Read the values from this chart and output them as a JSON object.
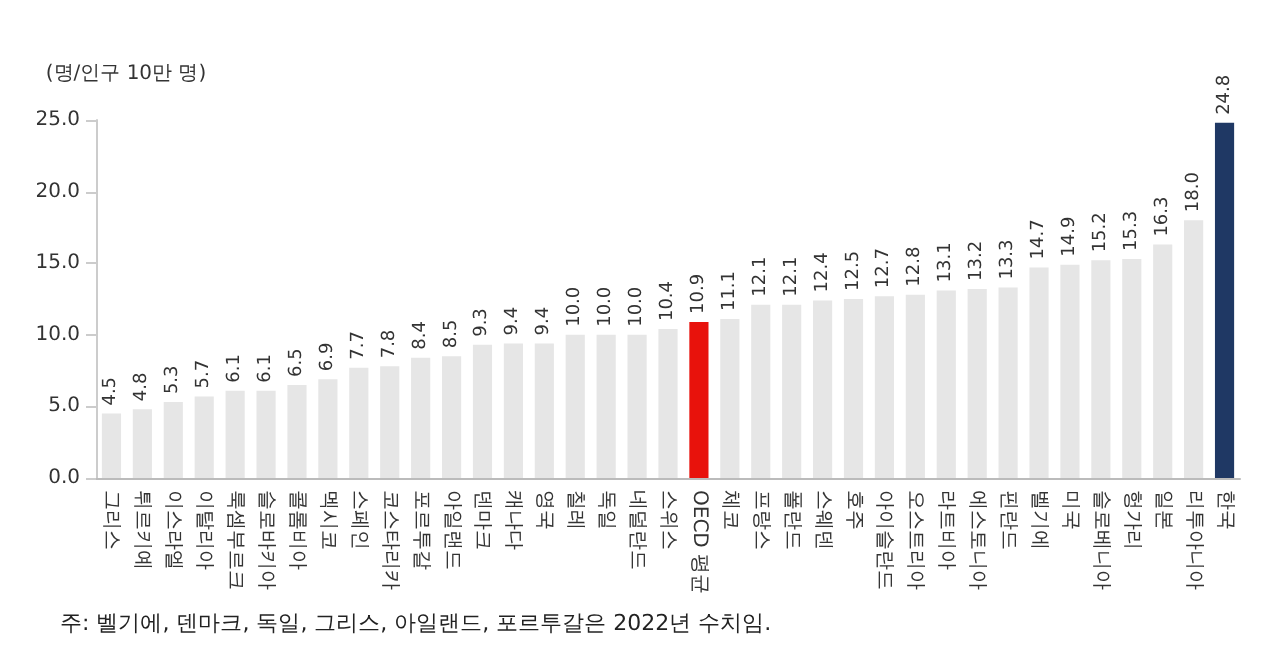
{
  "chart_data": {
    "type": "bar",
    "ylabel": "(명/인구 10만 명)",
    "categories": [
      "그리스",
      "튀르키예",
      "이스라엘",
      "이탈리아",
      "룩셈부르크",
      "슬로바키아",
      "콜롬비아",
      "멕시코",
      "스페인",
      "코스타리카",
      "포르투갈",
      "아일랜드",
      "덴마크",
      "캐나다",
      "영국",
      "칠레",
      "독일",
      "네덜란드",
      "스위스",
      "OECD 평균",
      "체코",
      "프랑스",
      "폴란드",
      "스웨덴",
      "호주",
      "아이슬란드",
      "오스트리아",
      "라트비아",
      "에스토니아",
      "핀란드",
      "벨기에",
      "미국",
      "슬로베니아",
      "헝가리",
      "일본",
      "리투아니아",
      "한국"
    ],
    "values": [
      4.5,
      4.8,
      5.3,
      5.7,
      6.1,
      6.1,
      6.5,
      6.9,
      7.7,
      7.8,
      8.4,
      8.5,
      9.3,
      9.4,
      9.4,
      10.0,
      10.0,
      10.0,
      10.4,
      10.9,
      11.1,
      12.1,
      12.1,
      12.4,
      12.5,
      12.7,
      12.8,
      13.1,
      13.2,
      13.3,
      14.7,
      14.9,
      15.2,
      15.3,
      16.3,
      18.0,
      24.8
    ],
    "value_labels": [
      "4.5",
      "4.8",
      "5.3",
      "5.7",
      "6.1",
      "6.1",
      "6.5",
      "6.9",
      "7.7",
      "7.8",
      "8.4",
      "8.5",
      "9.3",
      "9.4",
      "9.4",
      "10.0",
      "10.0",
      "10.0",
      "10.4",
      "10.9",
      "11.1",
      "12.1",
      "12.1",
      "12.4",
      "12.5",
      "12.7",
      "12.8",
      "13.1",
      "13.2",
      "13.3",
      "14.7",
      "14.9",
      "15.2",
      "15.3",
      "16.3",
      "18.0",
      "24.8"
    ],
    "colors": [
      "#e6e6e6",
      "#e6e6e6",
      "#e6e6e6",
      "#e6e6e6",
      "#e6e6e6",
      "#e6e6e6",
      "#e6e6e6",
      "#e6e6e6",
      "#e6e6e6",
      "#e6e6e6",
      "#e6e6e6",
      "#e6e6e6",
      "#e6e6e6",
      "#e6e6e6",
      "#e6e6e6",
      "#e6e6e6",
      "#e6e6e6",
      "#e6e6e6",
      "#e6e6e6",
      "#e8120c",
      "#e6e6e6",
      "#e6e6e6",
      "#e6e6e6",
      "#e6e6e6",
      "#e6e6e6",
      "#e6e6e6",
      "#e6e6e6",
      "#e6e6e6",
      "#e6e6e6",
      "#e6e6e6",
      "#e6e6e6",
      "#e6e6e6",
      "#e6e6e6",
      "#e6e6e6",
      "#e6e6e6",
      "#e6e6e6",
      "#1f3864"
    ],
    "ylim": [
      0,
      25
    ],
    "yticks": [
      {
        "value": 0,
        "label": "0.0"
      },
      {
        "value": 5,
        "label": "5.0"
      },
      {
        "value": 10,
        "label": "10.0"
      },
      {
        "value": 15,
        "label": "15.0"
      },
      {
        "value": 20,
        "label": "20.0"
      },
      {
        "value": 25,
        "label": "25.0"
      }
    ],
    "grid": false,
    "annotations": [
      "주: 벨기에, 덴마크, 독일, 그리스, 아일랜드, 포르투갈은 2022년 수치임."
    ]
  }
}
